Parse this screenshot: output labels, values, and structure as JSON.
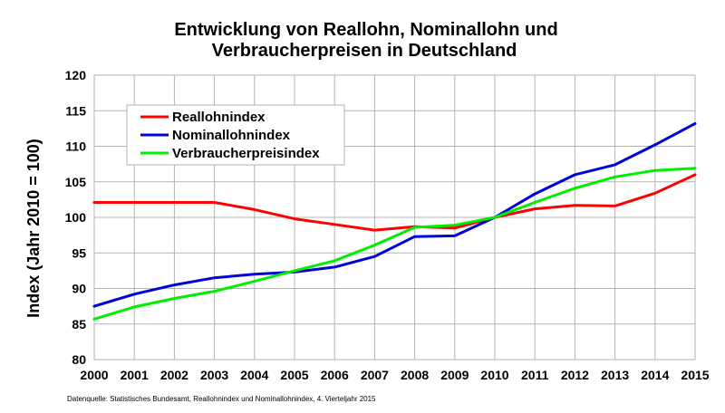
{
  "chart_data": {
    "type": "line",
    "title_line1": "Entwicklung von Reallohn, Nominallohn und",
    "title_line2": "Verbraucherpreisen in Deutschland",
    "ylabel": "Index (Jahr 2010 = 100)",
    "xlabel": "",
    "x": [
      2000,
      2001,
      2002,
      2003,
      2004,
      2005,
      2006,
      2007,
      2008,
      2009,
      2010,
      2011,
      2012,
      2013,
      2014,
      2015
    ],
    "xlim": [
      2000,
      2015
    ],
    "ylim": [
      80,
      120
    ],
    "yticks": [
      80,
      85,
      90,
      95,
      100,
      105,
      110,
      115,
      120
    ],
    "grid": true,
    "legend_position": "top-left",
    "series": [
      {
        "name": "Reallohnindex",
        "color": "#ff0000",
        "values": [
          102.1,
          102.1,
          102.1,
          102.1,
          101.1,
          99.8,
          99.0,
          98.2,
          98.7,
          98.5,
          100.0,
          101.2,
          101.7,
          101.6,
          103.4,
          106.0
        ]
      },
      {
        "name": "Nominallohnindex",
        "color": "#0000dd",
        "values": [
          87.5,
          89.2,
          90.5,
          91.5,
          92.0,
          92.3,
          93.0,
          94.5,
          97.3,
          97.4,
          100.0,
          103.3,
          106.0,
          107.4,
          110.2,
          113.2
        ]
      },
      {
        "name": "Verbraucherpreisindex",
        "color": "#00ee00",
        "values": [
          85.7,
          87.4,
          88.6,
          89.6,
          91.0,
          92.5,
          93.9,
          96.1,
          98.6,
          98.9,
          100.0,
          102.1,
          104.1,
          105.7,
          106.6,
          106.9
        ]
      }
    ],
    "source": "Datenquelle:  Statistisches Bundesamt, Reallohnindex und Nominallohnindex, 4. Vierteljahr 2015"
  }
}
